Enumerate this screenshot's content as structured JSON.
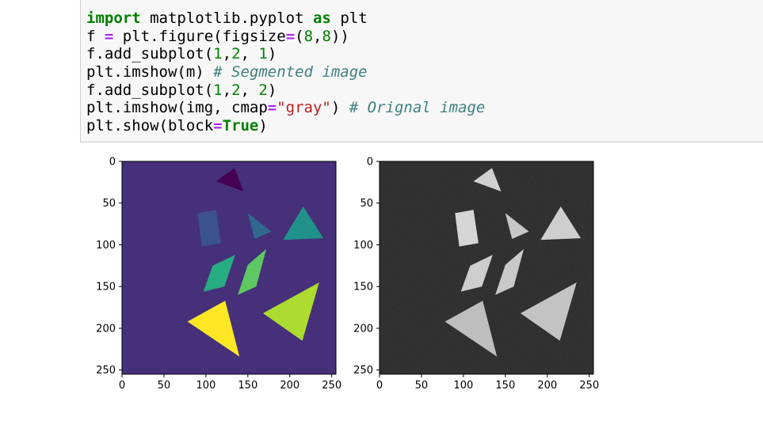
{
  "code_cell": {
    "lines": [
      [
        {
          "t": "import",
          "c": "kw"
        },
        {
          "t": " matplotlib.pyplot ",
          "c": ""
        },
        {
          "t": "as",
          "c": "kw"
        },
        {
          "t": " plt",
          "c": ""
        }
      ],
      [
        {
          "t": "f ",
          "c": ""
        },
        {
          "t": "=",
          "c": "op"
        },
        {
          "t": " plt.figure(figsize",
          "c": ""
        },
        {
          "t": "=",
          "c": "op"
        },
        {
          "t": "(",
          "c": ""
        },
        {
          "t": "8",
          "c": "num"
        },
        {
          "t": ",",
          "c": ""
        },
        {
          "t": "8",
          "c": "num"
        },
        {
          "t": "))",
          "c": ""
        }
      ],
      [
        {
          "t": "f.add_subplot(",
          "c": ""
        },
        {
          "t": "1",
          "c": "num"
        },
        {
          "t": ",",
          "c": ""
        },
        {
          "t": "2",
          "c": "num"
        },
        {
          "t": ", ",
          "c": ""
        },
        {
          "t": "1",
          "c": "num"
        },
        {
          "t": ")",
          "c": ""
        }
      ],
      [
        {
          "t": "plt.imshow(m) ",
          "c": ""
        },
        {
          "t": "# Segmented image",
          "c": "cm"
        }
      ],
      [
        {
          "t": "f.add_subplot(",
          "c": ""
        },
        {
          "t": "1",
          "c": "num"
        },
        {
          "t": ",",
          "c": ""
        },
        {
          "t": "2",
          "c": "num"
        },
        {
          "t": ", ",
          "c": ""
        },
        {
          "t": "2",
          "c": "num"
        },
        {
          "t": ")",
          "c": ""
        }
      ],
      [
        {
          "t": "plt.imshow(img, cmap",
          "c": ""
        },
        {
          "t": "=",
          "c": "op"
        },
        {
          "t": "\"gray\"",
          "c": "str"
        },
        {
          "t": ") ",
          "c": ""
        },
        {
          "t": "# Orignal image",
          "c": "cm"
        }
      ],
      [
        {
          "t": "plt.show(block",
          "c": ""
        },
        {
          "t": "=",
          "c": "op"
        },
        {
          "t": "True",
          "c": "kw"
        },
        {
          "t": ")",
          "c": ""
        }
      ]
    ]
  },
  "colors": {
    "viridis_background": "#46307a",
    "gray_background": "#232323"
  },
  "chart_data": [
    {
      "type": "image",
      "name": "segmented",
      "xlim": [
        0,
        255
      ],
      "ylim": [
        255,
        0
      ],
      "xticks": [
        0,
        50,
        100,
        150,
        200,
        250
      ],
      "yticks": [
        0,
        50,
        100,
        150,
        200,
        250
      ],
      "xtick_labels": [
        "0",
        "50",
        "100",
        "150",
        "200",
        "250"
      ],
      "ytick_labels": [
        "0",
        "50",
        "100",
        "150",
        "200",
        "250"
      ],
      "background": "#46307a",
      "regions": [
        {
          "color": "#440154",
          "points": [
            [
              112,
              24
            ],
            [
              134,
              8
            ],
            [
              145,
              36
            ]
          ]
        },
        {
          "color": "#3b528b",
          "points": [
            [
              90,
              62
            ],
            [
              112,
              58
            ],
            [
              118,
              98
            ],
            [
              95,
              102
            ]
          ]
        },
        {
          "color": "#31688e",
          "points": [
            [
              150,
              62
            ],
            [
              178,
              84
            ],
            [
              158,
              93
            ]
          ]
        },
        {
          "color": "#21918c",
          "points": [
            [
              192,
              94
            ],
            [
              216,
              54
            ],
            [
              240,
              92
            ]
          ]
        },
        {
          "color": "#27ad81",
          "points": [
            [
              97,
              156
            ],
            [
              108,
              125
            ],
            [
              135,
              112
            ],
            [
              122,
              150
            ]
          ]
        },
        {
          "color": "#5ec962",
          "points": [
            [
              138,
              160
            ],
            [
              150,
              124
            ],
            [
              172,
              105
            ],
            [
              160,
              150
            ]
          ]
        },
        {
          "color": "#addc30",
          "points": [
            [
              168,
              182
            ],
            [
              235,
              145
            ],
            [
              215,
              215
            ]
          ]
        },
        {
          "color": "#fde725",
          "points": [
            [
              78,
              192
            ],
            [
              123,
              167
            ],
            [
              140,
              234
            ]
          ]
        }
      ]
    },
    {
      "type": "image",
      "name": "original",
      "cmap": "gray",
      "xlim": [
        0,
        255
      ],
      "ylim": [
        255,
        0
      ],
      "xticks": [
        0,
        50,
        100,
        150,
        200,
        250
      ],
      "yticks": [
        0,
        50,
        100,
        150,
        200,
        250
      ],
      "xtick_labels": [
        "0",
        "50",
        "100",
        "150",
        "200",
        "250"
      ],
      "ytick_labels": [
        "0",
        "50",
        "100",
        "150",
        "200",
        "250"
      ],
      "background": "#232323",
      "regions": [
        {
          "color": "#d2d2d2",
          "points": [
            [
              112,
              24
            ],
            [
              134,
              8
            ],
            [
              145,
              36
            ]
          ]
        },
        {
          "color": "#d8d8d8",
          "points": [
            [
              90,
              62
            ],
            [
              112,
              58
            ],
            [
              118,
              98
            ],
            [
              95,
              102
            ]
          ]
        },
        {
          "color": "#c8c8c8",
          "points": [
            [
              150,
              62
            ],
            [
              178,
              84
            ],
            [
              158,
              93
            ]
          ]
        },
        {
          "color": "#d0d0d0",
          "points": [
            [
              192,
              94
            ],
            [
              216,
              54
            ],
            [
              240,
              92
            ]
          ]
        },
        {
          "color": "#cfcfcf",
          "points": [
            [
              97,
              156
            ],
            [
              108,
              125
            ],
            [
              135,
              112
            ],
            [
              122,
              150
            ]
          ]
        },
        {
          "color": "#cacaca",
          "points": [
            [
              138,
              160
            ],
            [
              150,
              124
            ],
            [
              172,
              105
            ],
            [
              160,
              150
            ]
          ]
        },
        {
          "color": "#c4c4c4",
          "points": [
            [
              168,
              182
            ],
            [
              235,
              145
            ],
            [
              215,
              215
            ]
          ]
        },
        {
          "color": "#bebebe",
          "points": [
            [
              78,
              192
            ],
            [
              123,
              167
            ],
            [
              140,
              234
            ]
          ]
        }
      ]
    }
  ]
}
